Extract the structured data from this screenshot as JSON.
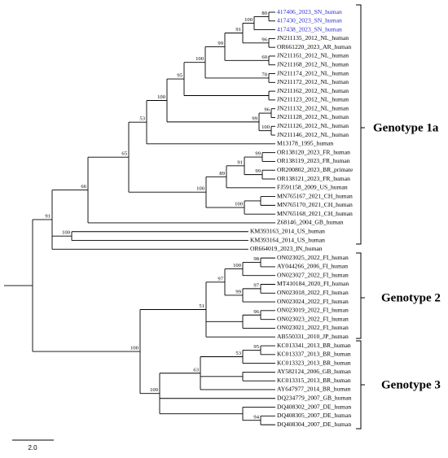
{
  "leaves": [
    "417406_2023_SN_human",
    "417430_2023_SN_human",
    "417438_2023_SN_human",
    "JN211135_2012_NL_human",
    "OR661220_2023_AR_human",
    "JN211161_2012_NL_human",
    "JN211168_2012_NL_human",
    "JN211174_2012_NL_human",
    "JN211172_2012_NL_human",
    "JN211162_2012_NL_human",
    "JN211123_2012_NL_human",
    "JN211132_2012_NL_human",
    "JN211128_2012_NL_human",
    "JN211126_2012_NL_human",
    "JN211146_2012_NL_human",
    "M13178_1995_human",
    "OR138120_2023_FR_human",
    "OR138119_2023_FR_human",
    "OR200802_2023_BR_primate",
    "OR138121_2023_FR_human",
    "FJ591158_2009_US_human",
    "MN765167_2021_CH_human",
    "MN765170_2021_CH_human",
    "MN765168_2021_CH_human",
    "Z68146_2004_GB_human",
    "KM393163_2014_US_human",
    "KM393164_2014_US_human",
    "OR664019_2023_IN_human",
    "ON023025_2022_FI_human",
    "AY044266_2006_FI_human",
    "ON023027_2022_FI_human",
    "MT410184_2020_FI_human",
    "ON023018_2022_FI_human",
    "ON023024_2022_FI_human",
    "ON023019_2022_FI_human",
    "ON023023_2022_FI_human",
    "ON023021_2022_FI_human",
    "AB550331_2010_JP_human",
    "KC013341_2013_BR_human",
    "KC013337_2013_BR_human",
    "KC013323_2013_BR_human",
    "AY582124_2006_GB_human",
    "KC013315_2013_BR_human",
    "AY647977_2014_BR_human",
    "DQ234779_2007_GB_human",
    "DQ408302_2007_DE_human",
    "DQ408305_2007_DE_human",
    "DQ408304_2007_DE_human"
  ],
  "bootstrap": [
    "80",
    "100",
    "91",
    "96",
    "99",
    "60",
    "100",
    "70",
    "95",
    "100",
    "96",
    "99",
    "100",
    "53",
    "65",
    "99",
    "91",
    "99",
    "89",
    "100",
    "100",
    "66",
    "91",
    "100",
    "98",
    "100",
    "97",
    "97",
    "99",
    "51",
    "96",
    "95",
    "53",
    "63",
    "100",
    "94",
    "100"
  ],
  "genotypes": [
    "Genotype 1a",
    "Genotype 2",
    "Genotype 3"
  ],
  "scale": "2.0"
}
